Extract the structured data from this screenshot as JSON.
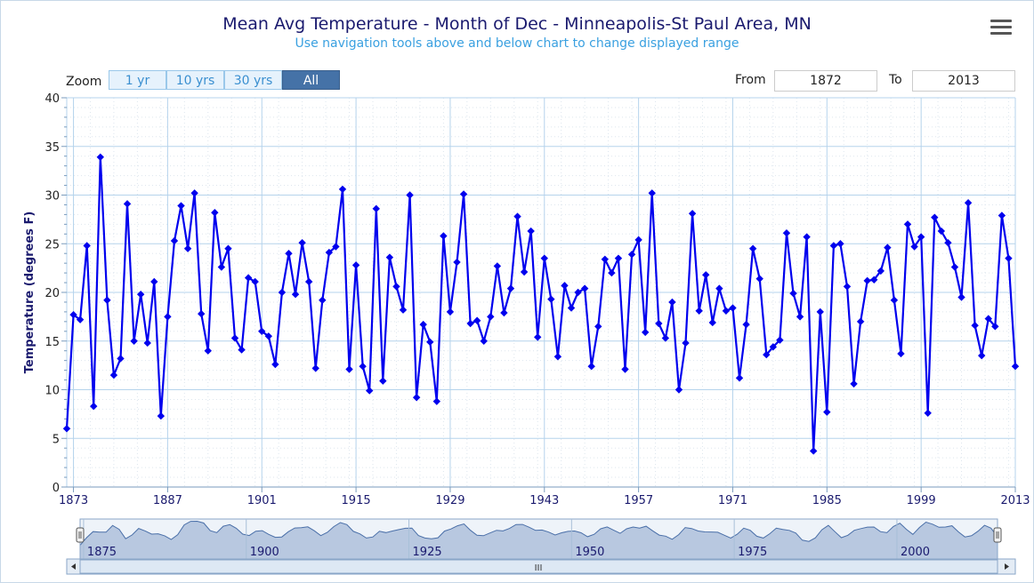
{
  "header": {
    "title": "Mean Avg Temperature - Month of Dec - Minneapolis-St Paul Area, MN",
    "subtitle": "Use navigation tools above and below chart to change displayed range",
    "menu_icon": "hamburger-menu-icon"
  },
  "range_selector": {
    "zoom_label": "Zoom",
    "buttons": [
      "1 yr",
      "10 yrs",
      "30 yrs",
      "All"
    ],
    "active": "All",
    "from_label": "From",
    "to_label": "To",
    "from_value": "1872",
    "to_value": "2013"
  },
  "navigator": {
    "labels": [
      "1875",
      "1900",
      "1925",
      "1950",
      "1975",
      "2000"
    ],
    "scrollbar_grip": "III",
    "left_arrow_icon": "scroll-left-arrow-icon",
    "right_arrow_icon": "scroll-right-arrow-icon"
  },
  "colors": {
    "series": "#0000ee",
    "grid": "#b5d3ec",
    "navigator_fill": "#b8c8e0",
    "navigator_line": "#4a6fa8",
    "zoom_active": "#4572a7"
  },
  "chart_data": {
    "type": "line",
    "title": "Mean Avg Temperature - Month of Dec - Minneapolis-St Paul Area, MN",
    "subtitle": "Use navigation tools above and below chart to change displayed range",
    "ylabel": "Temperature (degrees F)",
    "xlabel": "",
    "ylim": [
      0,
      40
    ],
    "xlim": [
      1872,
      2013
    ],
    "yticks": [
      0,
      5,
      10,
      15,
      20,
      25,
      30,
      35,
      40
    ],
    "xticks": [
      1873,
      1887,
      1901,
      1915,
      1929,
      1943,
      1957,
      1971,
      1985,
      1999,
      2013
    ],
    "grid": true,
    "legend": "none",
    "series": [
      {
        "x_start": 1872,
        "values": [
          6.0,
          17.7,
          17.2,
          24.8,
          8.3,
          33.9,
          19.2,
          11.5,
          13.2,
          29.1,
          15.0,
          19.8,
          14.8,
          21.1,
          7.3,
          17.5,
          25.3,
          28.9,
          24.5,
          30.2,
          17.8,
          14.0,
          28.2,
          22.6,
          24.5,
          15.3,
          14.1,
          21.5,
          21.1,
          16.0,
          15.5,
          12.6,
          20.0,
          24.0,
          19.8,
          25.1,
          21.1,
          12.2,
          19.2,
          24.1,
          24.7,
          30.6,
          12.1,
          22.8,
          12.4,
          9.9,
          28.6,
          10.9,
          23.6,
          20.6,
          18.2,
          30.0,
          9.2,
          16.7,
          14.9,
          8.8,
          25.8,
          18.0,
          23.1,
          30.1,
          16.8,
          17.1,
          15.0,
          17.5,
          22.7,
          17.9,
          20.4,
          27.8,
          22.1,
          26.3,
          15.4,
          23.5,
          19.3,
          13.4,
          20.7,
          18.4,
          20.0,
          20.4,
          12.4,
          16.5,
          23.4,
          22.0,
          23.5,
          12.1,
          23.9,
          25.4,
          15.9,
          30.2,
          16.8,
          15.3,
          19.0,
          10.0,
          14.8,
          28.1,
          18.1,
          21.8,
          16.9,
          20.4,
          18.1,
          18.4,
          11.2,
          16.7,
          24.5,
          21.4,
          13.6,
          14.4,
          15.1,
          26.1,
          19.9,
          17.5,
          25.7,
          3.7,
          18.0,
          7.7,
          24.8,
          25.0,
          20.6,
          10.6,
          17.0,
          21.2,
          21.3,
          22.2,
          24.6,
          19.2,
          13.7,
          27.0,
          24.7,
          25.7,
          7.6,
          27.7,
          26.3,
          25.1,
          22.6,
          19.5,
          29.2,
          16.6,
          13.5,
          17.3,
          16.5,
          27.9,
          23.5,
          12.4
        ]
      }
    ]
  }
}
